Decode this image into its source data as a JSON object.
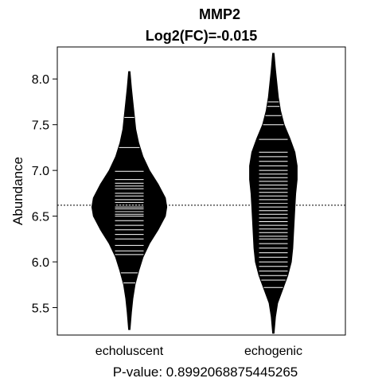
{
  "chart_data": {
    "type": "beanplot",
    "title": "MMP2",
    "subtitle": "Log2(FC)=-0.015",
    "xlabel": "P-value: 0.8992068875445265",
    "ylabel": "Abundance",
    "ylim": [
      5.2,
      8.35
    ],
    "yticks": [
      5.5,
      6.0,
      6.5,
      7.0,
      7.5,
      8.0
    ],
    "ytick_labels": [
      "5.5",
      "6.0",
      "6.5",
      "7.0",
      "7.5",
      "8.0"
    ],
    "categories": [
      "echoluscent",
      "echogenic"
    ],
    "overall_mean": 6.62,
    "grid": false,
    "series": [
      {
        "category": "echoluscent",
        "density_ymin": 5.26,
        "density_ymax": 8.08,
        "profile": [
          [
            5.26,
            0.01
          ],
          [
            5.45,
            0.03
          ],
          [
            5.6,
            0.05
          ],
          [
            5.75,
            0.08
          ],
          [
            5.9,
            0.13
          ],
          [
            6.05,
            0.19
          ],
          [
            6.2,
            0.28
          ],
          [
            6.35,
            0.4
          ],
          [
            6.5,
            0.5
          ],
          [
            6.6,
            0.52
          ],
          [
            6.7,
            0.5
          ],
          [
            6.85,
            0.4
          ],
          [
            7.0,
            0.28
          ],
          [
            7.15,
            0.19
          ],
          [
            7.3,
            0.13
          ],
          [
            7.45,
            0.09
          ],
          [
            7.6,
            0.07
          ],
          [
            7.75,
            0.05
          ],
          [
            7.9,
            0.03
          ],
          [
            8.08,
            0.01
          ]
        ],
        "observations": [
          5.77,
          5.88,
          6.08,
          6.12,
          6.18,
          6.25,
          6.3,
          6.35,
          6.4,
          6.45,
          6.5,
          6.52,
          6.55,
          6.58,
          6.6,
          6.62,
          6.65,
          6.68,
          6.72,
          6.75,
          6.8,
          6.83,
          6.86,
          6.9,
          6.99,
          7.25,
          7.58
        ]
      },
      {
        "category": "echogenic",
        "density_ymin": 5.22,
        "density_ymax": 8.28,
        "profile": [
          [
            5.22,
            0.01
          ],
          [
            5.4,
            0.03
          ],
          [
            5.55,
            0.06
          ],
          [
            5.7,
            0.13
          ],
          [
            5.85,
            0.2
          ],
          [
            6.0,
            0.25
          ],
          [
            6.15,
            0.27
          ],
          [
            6.3,
            0.28
          ],
          [
            6.45,
            0.29
          ],
          [
            6.6,
            0.3
          ],
          [
            6.75,
            0.31
          ],
          [
            6.9,
            0.33
          ],
          [
            7.05,
            0.33
          ],
          [
            7.2,
            0.3
          ],
          [
            7.35,
            0.23
          ],
          [
            7.5,
            0.15
          ],
          [
            7.65,
            0.1
          ],
          [
            7.8,
            0.07
          ],
          [
            7.95,
            0.05
          ],
          [
            8.1,
            0.03
          ],
          [
            8.28,
            0.01
          ]
        ],
        "observations": [
          5.72,
          5.8,
          5.85,
          5.9,
          5.95,
          6.0,
          6.05,
          6.1,
          6.15,
          6.2,
          6.25,
          6.28,
          6.32,
          6.36,
          6.4,
          6.44,
          6.48,
          6.52,
          6.56,
          6.6,
          6.64,
          6.68,
          6.72,
          6.76,
          6.8,
          6.84,
          6.88,
          6.92,
          6.96,
          7.0,
          7.05,
          7.1,
          7.15,
          7.2,
          7.34,
          7.5,
          7.6,
          7.7,
          7.75
        ]
      }
    ]
  }
}
